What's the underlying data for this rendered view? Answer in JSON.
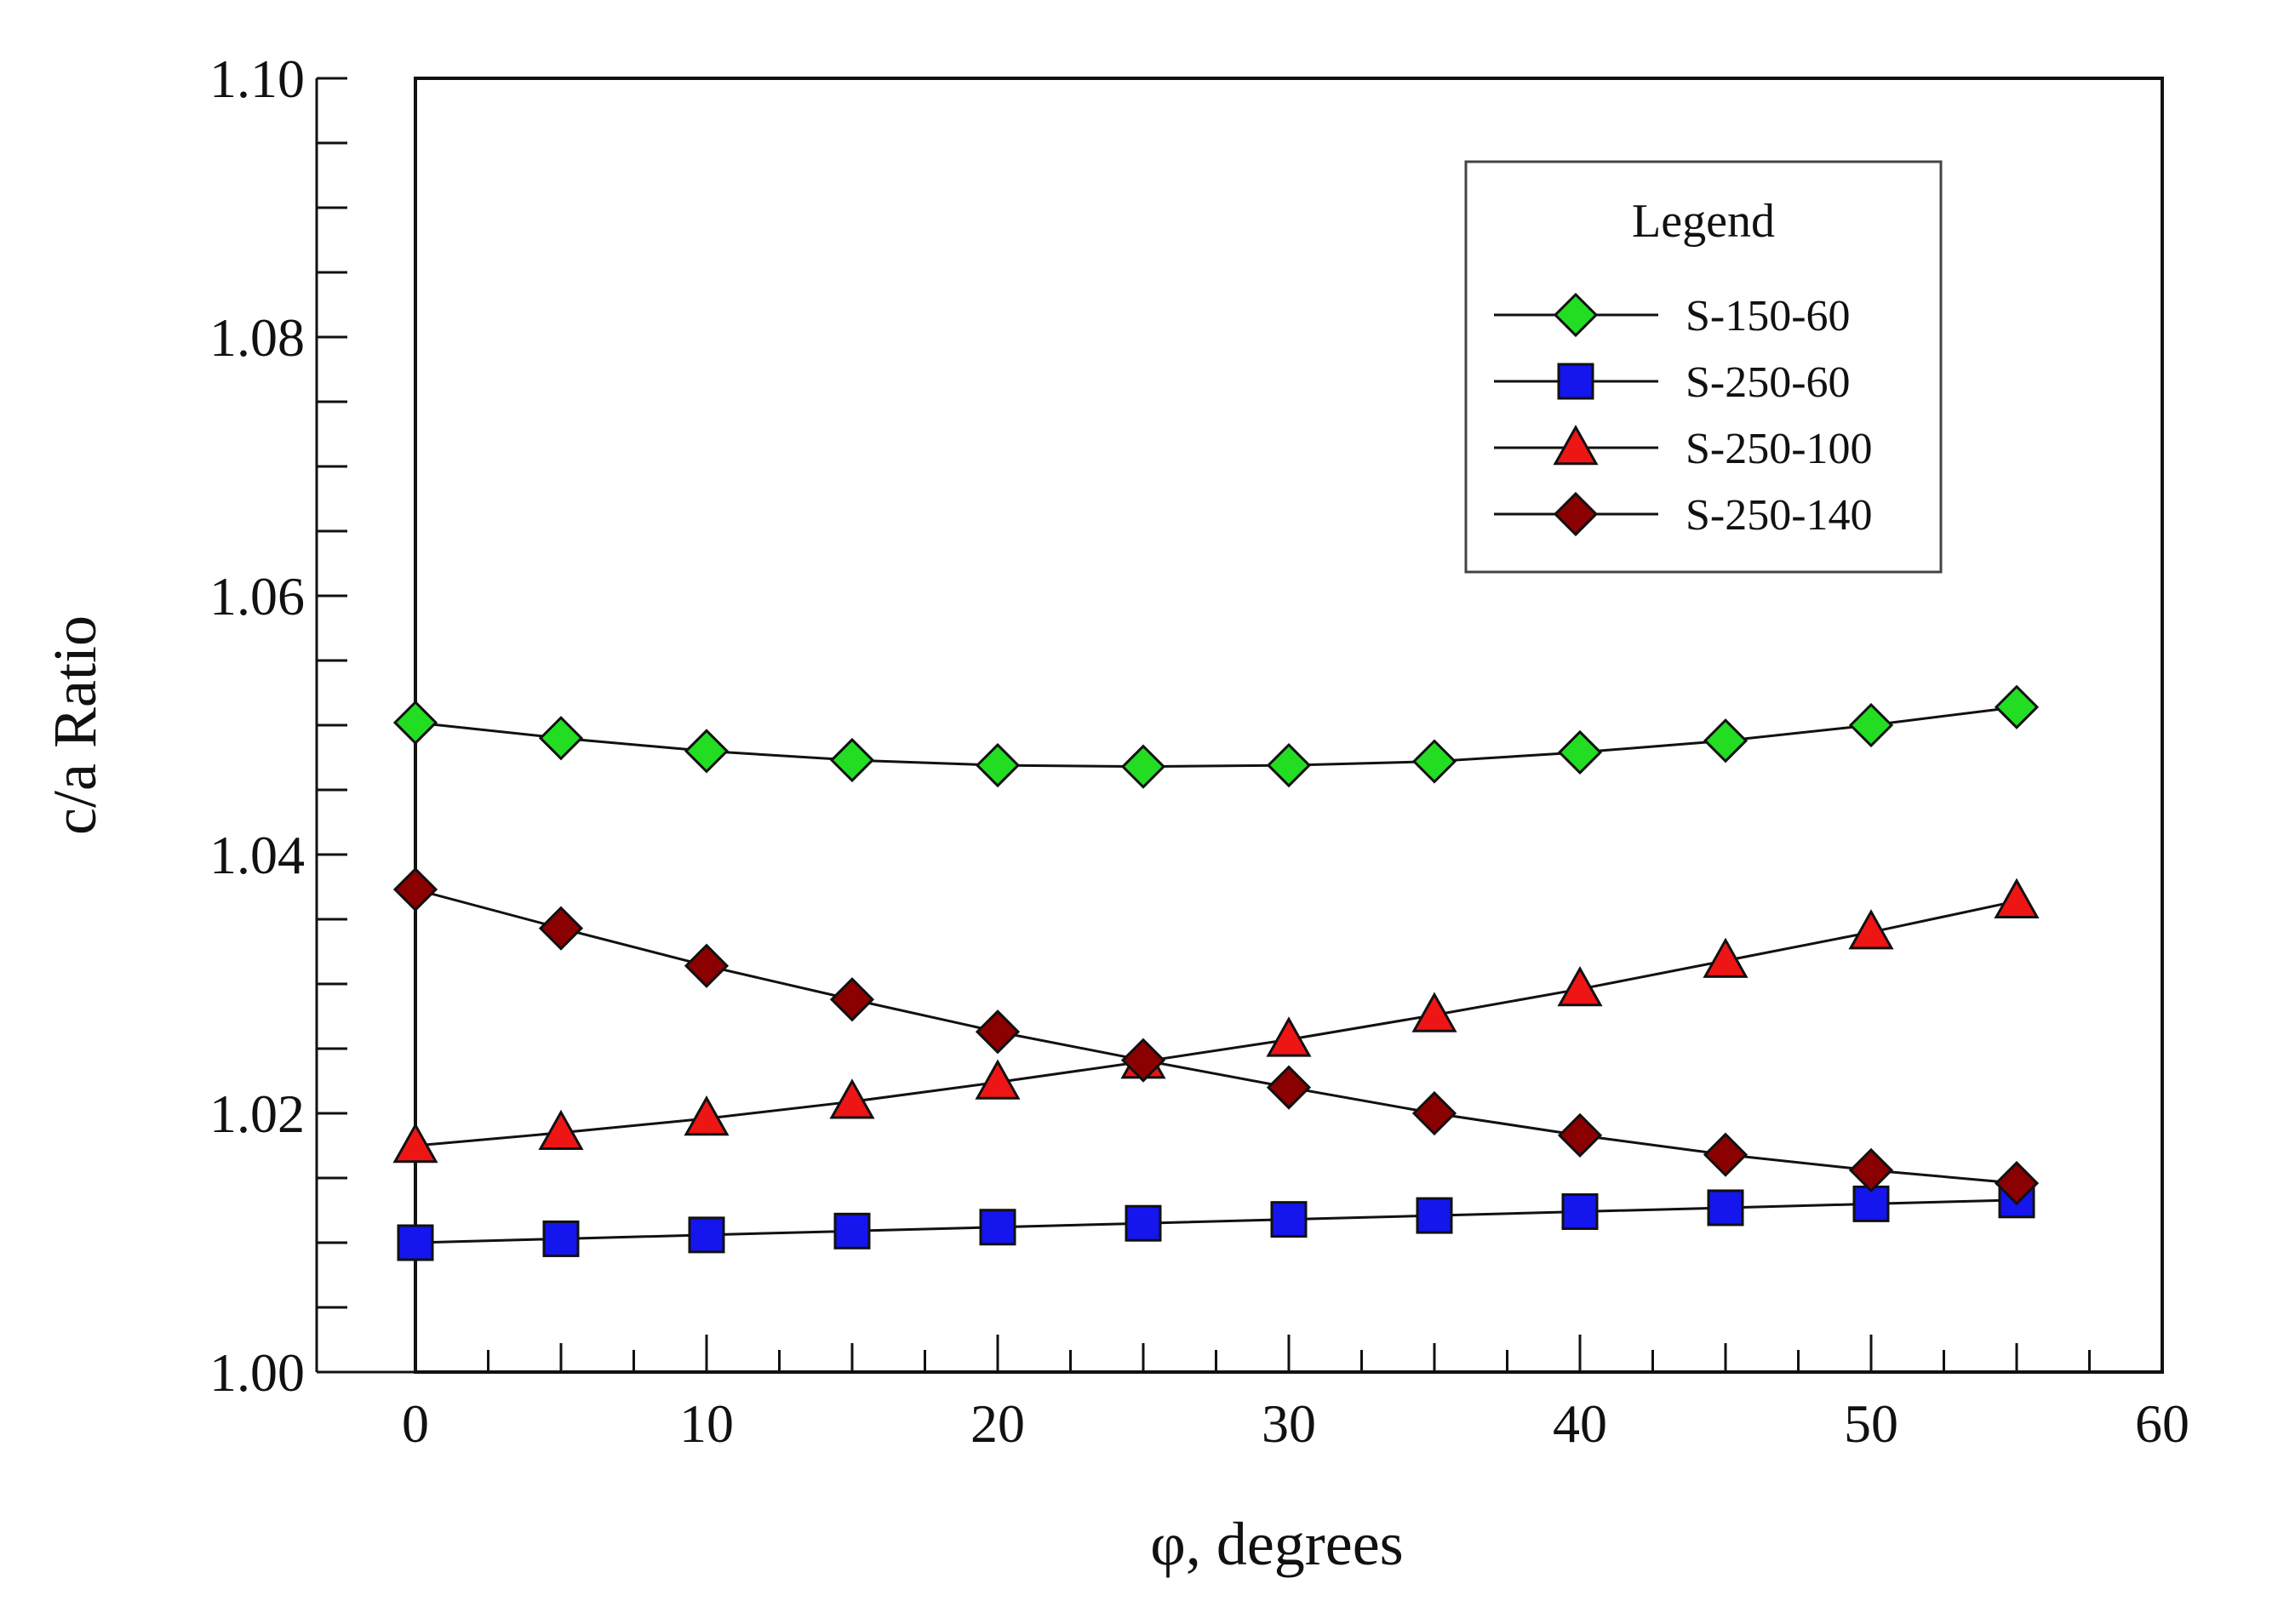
{
  "chart_data": {
    "type": "line",
    "title": "",
    "xlabel": "φ, degrees",
    "ylabel": "c/a Ratio",
    "xlim": [
      0,
      60
    ],
    "ylim": [
      1.0,
      1.1
    ],
    "xticks": [
      0,
      10,
      20,
      30,
      40,
      50,
      60
    ],
    "xtick_labels": [
      "0",
      "10",
      "20",
      "30",
      "40",
      "50",
      "60"
    ],
    "yticks": [
      1.0,
      1.02,
      1.04,
      1.06,
      1.08,
      1.1
    ],
    "ytick_labels": [
      "1.00",
      "1.02",
      "1.04",
      "1.06",
      "1.08",
      "1.10"
    ],
    "grid": false,
    "legend": {
      "title": "Legend",
      "position": "top-right"
    },
    "x": [
      0,
      5,
      10,
      15,
      20,
      25,
      30,
      35,
      40,
      45,
      50,
      55
    ],
    "series": [
      {
        "name": "S-150-60",
        "marker": "diamond",
        "color": "#22dd22",
        "values": [
          1.0502,
          1.049,
          1.048,
          1.0473,
          1.0469,
          1.0468,
          1.0469,
          1.0472,
          1.0479,
          1.0488,
          1.05,
          1.0514
        ]
      },
      {
        "name": "S-250-60",
        "marker": "square",
        "color": "#1515ee",
        "values": [
          1.01,
          1.0103,
          1.0106,
          1.0109,
          1.0112,
          1.0115,
          1.0118,
          1.0121,
          1.0124,
          1.0127,
          1.013,
          1.0133
        ]
      },
      {
        "name": "S-250-100",
        "marker": "triangle",
        "color": "#ee1515",
        "values": [
          1.0175,
          1.0185,
          1.0196,
          1.0209,
          1.0224,
          1.024,
          1.0257,
          1.0276,
          1.0296,
          1.0318,
          1.034,
          1.0364
        ]
      },
      {
        "name": "S-250-140",
        "marker": "diamond",
        "color": "#8b0000",
        "values": [
          1.0373,
          1.0343,
          1.0314,
          1.0288,
          1.0263,
          1.0241,
          1.022,
          1.02,
          1.0183,
          1.0168,
          1.0156,
          1.0146
        ]
      }
    ]
  }
}
